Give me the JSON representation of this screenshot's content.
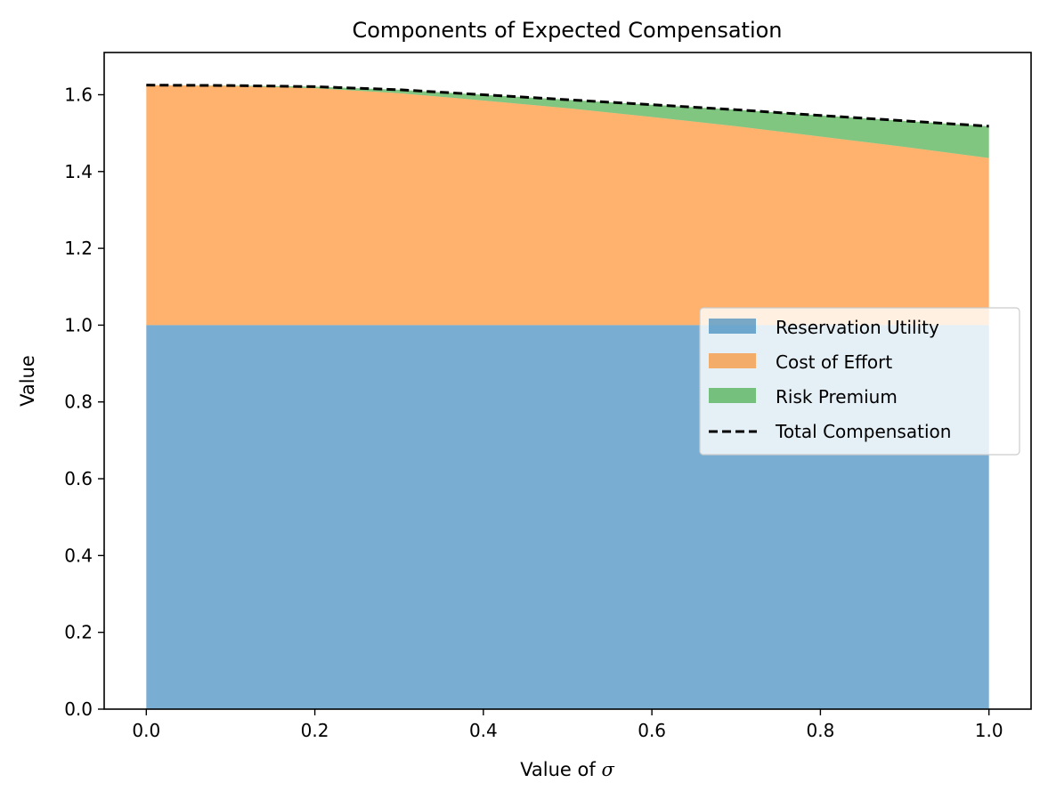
{
  "chart_data": {
    "type": "area",
    "stacked": true,
    "title": "Components of Expected Compensation",
    "xlabel_prefix": "Value of ",
    "xlabel_symbol": "σ",
    "ylabel": "Value",
    "xlim": [
      -0.05,
      1.05
    ],
    "ylim": [
      0.0,
      1.71
    ],
    "xticks": [
      0.0,
      0.2,
      0.4,
      0.6,
      0.8,
      1.0
    ],
    "xtick_labels": [
      "0.0",
      "0.2",
      "0.4",
      "0.6",
      "0.8",
      "1.0"
    ],
    "yticks": [
      0.0,
      0.2,
      0.4,
      0.6,
      0.8,
      1.0,
      1.2,
      1.4,
      1.6
    ],
    "ytick_labels": [
      "0.0",
      "0.2",
      "0.4",
      "0.6",
      "0.8",
      "1.0",
      "1.2",
      "1.4",
      "1.6"
    ],
    "x": [
      0.0,
      0.1,
      0.2,
      0.3,
      0.4,
      0.5,
      0.6,
      0.7,
      0.8,
      0.9,
      1.0
    ],
    "series": [
      {
        "name": "Reservation Utility",
        "color": "#1f77b4",
        "values": [
          1.0,
          1.0,
          1.0,
          1.0,
          1.0,
          1.0,
          1.0,
          1.0,
          1.0,
          1.0,
          1.0
        ]
      },
      {
        "name": "Cost of Effort",
        "color": "#ff7f0e",
        "values": [
          0.625,
          0.623,
          0.617,
          0.604,
          0.585,
          0.565,
          0.542,
          0.518,
          0.491,
          0.464,
          0.435
        ]
      },
      {
        "name": "Risk Premium",
        "color": "#2ca02c",
        "values": [
          0.0,
          0.001,
          0.004,
          0.009,
          0.015,
          0.022,
          0.032,
          0.043,
          0.055,
          0.068,
          0.083
        ]
      }
    ],
    "total_line": {
      "name": "Total Compensation",
      "color": "#000000",
      "style": "dashed",
      "values": [
        1.625,
        1.624,
        1.621,
        1.613,
        1.6,
        1.587,
        1.574,
        1.561,
        1.546,
        1.532,
        1.518
      ]
    },
    "legend_position": "center-right",
    "grid": false
  }
}
